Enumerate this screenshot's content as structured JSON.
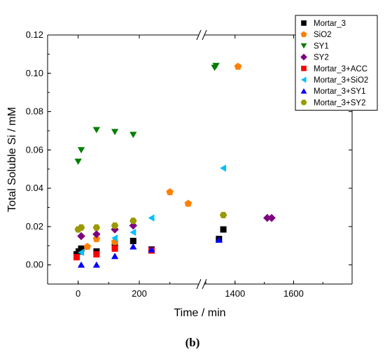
{
  "chart_data": {
    "type": "scatter",
    "xlabel": "Time / min",
    "ylabel": "Total Soluble Si / mM",
    "ylim": [
      -0.01,
      0.12
    ],
    "yticks": [
      "0.00",
      "0.02",
      "0.04",
      "0.06",
      "0.08",
      "0.10",
      "0.12"
    ],
    "x_axis": {
      "type": "broken",
      "segments": [
        {
          "xlim": [
            -100,
            390
          ],
          "ticks": [
            "0",
            "200"
          ]
        },
        {
          "xlim": [
            1300,
            1800
          ],
          "ticks": [
            "1400",
            "1600"
          ]
        }
      ]
    },
    "grid": false,
    "legend_position": "top-right",
    "series": [
      {
        "name": "Mortar_3",
        "marker": "square",
        "color": "#000000",
        "points": [
          [
            -5,
            0.0055
          ],
          [
            2,
            0.007
          ],
          [
            10,
            0.0085
          ],
          [
            60,
            0.007
          ],
          [
            120,
            0.0095
          ],
          [
            180,
            0.0125
          ],
          [
            240,
            0.008
          ],
          [
            1345,
            0.0135
          ],
          [
            1360,
            0.0185
          ]
        ]
      },
      {
        "name": "SiO2",
        "marker": "pentagon",
        "color": "#ff8000",
        "points": [
          [
            30,
            0.0095
          ],
          [
            60,
            0.0135
          ],
          [
            120,
            0.012
          ],
          [
            300,
            0.038
          ],
          [
            360,
            0.032
          ],
          [
            1410,
            0.1035
          ]
        ]
      },
      {
        "name": "SY1",
        "marker": "triangle-down",
        "color": "#007f00",
        "points": [
          [
            0,
            0.054
          ],
          [
            10,
            0.06
          ],
          [
            60,
            0.0705
          ],
          [
            120,
            0.0695
          ],
          [
            180,
            0.068
          ],
          [
            1330,
            0.103
          ],
          [
            1335,
            0.104
          ]
        ]
      },
      {
        "name": "SY2",
        "marker": "diamond",
        "color": "#7f007f",
        "points": [
          [
            10,
            0.015
          ],
          [
            60,
            0.016
          ],
          [
            120,
            0.0185
          ],
          [
            180,
            0.0205
          ],
          [
            1510,
            0.0245
          ],
          [
            1525,
            0.0245
          ]
        ]
      },
      {
        "name": "Mortar_3+ACC",
        "marker": "square",
        "color": "#ff0000",
        "points": [
          [
            -5,
            0.004
          ],
          [
            60,
            0.0055
          ],
          [
            120,
            0.0085
          ],
          [
            240,
            0.0075
          ]
        ]
      },
      {
        "name": "Mortar_3+SiO2",
        "marker": "triangle-left",
        "color": "#00bfff",
        "points": [
          [
            10,
            0.0065
          ],
          [
            120,
            0.014
          ],
          [
            180,
            0.017
          ],
          [
            240,
            0.0245
          ],
          [
            1360,
            0.0505
          ]
        ]
      },
      {
        "name": "Mortar_3+SY1",
        "marker": "triangle-up",
        "color": "#0000ff",
        "points": [
          [
            10,
            0.0
          ],
          [
            60,
            0.0
          ],
          [
            120,
            0.0045
          ],
          [
            180,
            0.0095
          ],
          [
            240,
            0.008
          ],
          [
            1345,
            0.013
          ]
        ]
      },
      {
        "name": "Mortar_3+SY2",
        "marker": "hexagon",
        "color": "#9a9a00",
        "points": [
          [
            0,
            0.0185
          ],
          [
            10,
            0.0195
          ],
          [
            60,
            0.0195
          ],
          [
            120,
            0.0205
          ],
          [
            180,
            0.023
          ],
          [
            1360,
            0.026
          ]
        ]
      }
    ]
  },
  "caption": "(b)"
}
